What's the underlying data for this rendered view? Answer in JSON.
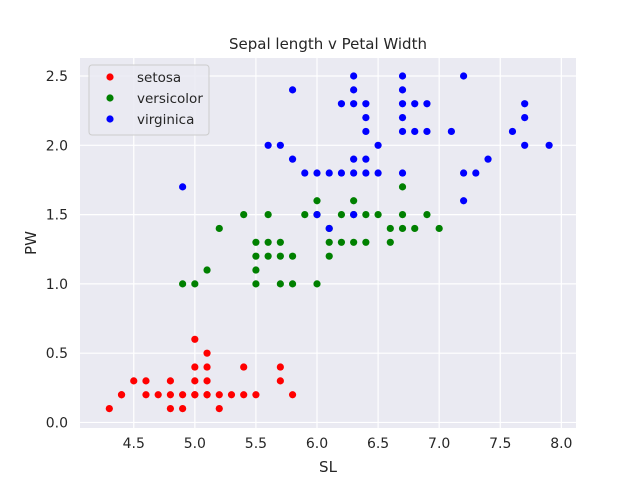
{
  "chart_data": {
    "type": "scatter",
    "title": "Sepal length v Petal Width",
    "xlabel": "SL",
    "ylabel": "PW",
    "xlim": [
      4.06,
      8.12
    ],
    "ylim": [
      -0.04,
      2.63
    ],
    "xticks": [
      4.5,
      5.0,
      5.5,
      6.0,
      6.5,
      7.0,
      7.5,
      8.0
    ],
    "xtick_labels": [
      "4.5",
      "5.0",
      "5.5",
      "6.0",
      "6.5",
      "7.0",
      "7.5",
      "8.0"
    ],
    "yticks": [
      0.0,
      0.5,
      1.0,
      1.5,
      2.0,
      2.5
    ],
    "ytick_labels": [
      "0.0",
      "0.5",
      "1.0",
      "1.5",
      "2.0",
      "2.5"
    ],
    "grid": true,
    "legend_position": "top-left",
    "background": "#eaeaf2",
    "series": [
      {
        "name": "setosa",
        "color": "#ff0000",
        "points": [
          [
            4.3,
            0.1
          ],
          [
            4.4,
            0.2
          ],
          [
            4.4,
            0.2
          ],
          [
            4.5,
            0.3
          ],
          [
            4.6,
            0.3
          ],
          [
            4.6,
            0.2
          ],
          [
            4.7,
            0.2
          ],
          [
            4.8,
            0.3
          ],
          [
            4.8,
            0.2
          ],
          [
            4.8,
            0.1
          ],
          [
            4.9,
            0.2
          ],
          [
            4.9,
            0.1
          ],
          [
            5.0,
            0.6
          ],
          [
            5.0,
            0.4
          ],
          [
            5.0,
            0.3
          ],
          [
            5.0,
            0.2
          ],
          [
            5.0,
            0.2
          ],
          [
            5.1,
            0.5
          ],
          [
            5.1,
            0.4
          ],
          [
            5.1,
            0.3
          ],
          [
            5.1,
            0.2
          ],
          [
            5.1,
            0.2
          ],
          [
            5.2,
            0.2
          ],
          [
            5.2,
            0.1
          ],
          [
            5.3,
            0.2
          ],
          [
            5.4,
            0.4
          ],
          [
            5.4,
            0.2
          ],
          [
            5.5,
            0.2
          ],
          [
            5.7,
            0.4
          ],
          [
            5.7,
            0.3
          ],
          [
            5.8,
            0.2
          ]
        ]
      },
      {
        "name": "versicolor",
        "color": "#008000",
        "points": [
          [
            4.9,
            1.0
          ],
          [
            5.0,
            1.0
          ],
          [
            5.1,
            1.1
          ],
          [
            5.2,
            1.4
          ],
          [
            5.4,
            1.5
          ],
          [
            5.5,
            1.3
          ],
          [
            5.5,
            1.2
          ],
          [
            5.5,
            1.1
          ],
          [
            5.5,
            1.0
          ],
          [
            5.6,
            1.5
          ],
          [
            5.6,
            1.3
          ],
          [
            5.6,
            1.2
          ],
          [
            5.7,
            1.3
          ],
          [
            5.7,
            1.2
          ],
          [
            5.7,
            1.0
          ],
          [
            5.8,
            1.2
          ],
          [
            5.8,
            1.0
          ],
          [
            5.9,
            1.5
          ],
          [
            6.0,
            1.6
          ],
          [
            6.0,
            1.5
          ],
          [
            6.0,
            1.0
          ],
          [
            6.1,
            1.4
          ],
          [
            6.1,
            1.3
          ],
          [
            6.1,
            1.2
          ],
          [
            6.2,
            1.5
          ],
          [
            6.2,
            1.3
          ],
          [
            6.3,
            1.6
          ],
          [
            6.3,
            1.5
          ],
          [
            6.3,
            1.3
          ],
          [
            6.4,
            1.5
          ],
          [
            6.4,
            1.3
          ],
          [
            6.5,
            1.5
          ],
          [
            6.6,
            1.4
          ],
          [
            6.6,
            1.3
          ],
          [
            6.7,
            1.7
          ],
          [
            6.7,
            1.5
          ],
          [
            6.7,
            1.4
          ],
          [
            6.8,
            1.4
          ],
          [
            6.9,
            1.5
          ],
          [
            7.0,
            1.4
          ]
        ]
      },
      {
        "name": "virginica",
        "color": "#0000ff",
        "points": [
          [
            4.9,
            1.7
          ],
          [
            5.6,
            2.0
          ],
          [
            5.7,
            2.0
          ],
          [
            5.8,
            2.4
          ],
          [
            5.8,
            1.9
          ],
          [
            5.9,
            1.8
          ],
          [
            6.0,
            1.8
          ],
          [
            6.0,
            1.5
          ],
          [
            6.1,
            1.8
          ],
          [
            6.1,
            1.4
          ],
          [
            6.2,
            2.3
          ],
          [
            6.2,
            1.8
          ],
          [
            6.3,
            2.5
          ],
          [
            6.3,
            2.4
          ],
          [
            6.3,
            2.3
          ],
          [
            6.3,
            1.9
          ],
          [
            6.3,
            1.8
          ],
          [
            6.3,
            1.5
          ],
          [
            6.4,
            2.3
          ],
          [
            6.4,
            2.2
          ],
          [
            6.4,
            2.1
          ],
          [
            6.4,
            1.9
          ],
          [
            6.4,
            1.8
          ],
          [
            6.5,
            2.0
          ],
          [
            6.5,
            1.8
          ],
          [
            6.7,
            2.5
          ],
          [
            6.7,
            2.4
          ],
          [
            6.7,
            2.3
          ],
          [
            6.7,
            2.2
          ],
          [
            6.7,
            2.1
          ],
          [
            6.7,
            1.8
          ],
          [
            6.8,
            2.3
          ],
          [
            6.8,
            2.1
          ],
          [
            6.9,
            2.3
          ],
          [
            6.9,
            2.1
          ],
          [
            7.1,
            2.1
          ],
          [
            7.2,
            2.5
          ],
          [
            7.2,
            1.8
          ],
          [
            7.2,
            1.6
          ],
          [
            7.3,
            1.8
          ],
          [
            7.4,
            1.9
          ],
          [
            7.6,
            2.1
          ],
          [
            7.7,
            2.3
          ],
          [
            7.7,
            2.2
          ],
          [
            7.7,
            2.0
          ],
          [
            7.9,
            2.0
          ]
        ]
      }
    ]
  }
}
